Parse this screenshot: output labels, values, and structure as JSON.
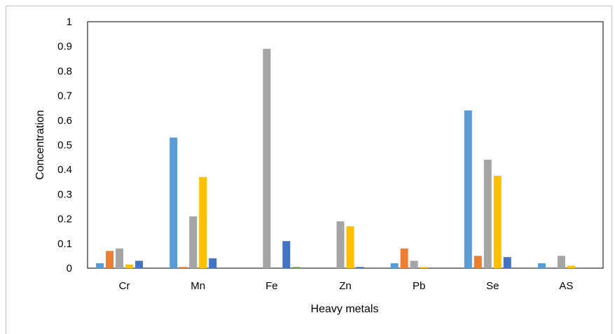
{
  "chart_data": {
    "type": "bar",
    "title": "",
    "xlabel": "Heavy metals",
    "ylabel": "Concentration",
    "categories": [
      "Cr",
      "Mn",
      "Fe",
      "Zn",
      "Pb",
      "Se",
      "AS"
    ],
    "ylim": [
      0,
      1
    ],
    "yticks": [
      "0",
      "0.1",
      "0.2",
      "0.3",
      "0.4",
      "0.5",
      "0.6",
      "0.7",
      "0.8",
      "0.9",
      "1"
    ],
    "grid": false,
    "legend": "none",
    "series": [
      {
        "color": "#5b9bd5",
        "values": [
          0.02,
          0.53,
          0,
          0,
          0.02,
          0.64,
          0.02
        ]
      },
      {
        "color": "#ed7d31",
        "values": [
          0.07,
          0.005,
          0,
          0,
          0.08,
          0.05,
          0
        ]
      },
      {
        "color": "#a5a5a5",
        "values": [
          0.08,
          0.21,
          0.89,
          0.19,
          0.03,
          0.44,
          0.05
        ]
      },
      {
        "color": "#ffc000",
        "values": [
          0.015,
          0.37,
          0,
          0.17,
          0.005,
          0.375,
          0.01
        ]
      },
      {
        "color": "#4472c4",
        "values": [
          0.03,
          0.04,
          0.11,
          0.005,
          0,
          0.045,
          0
        ]
      },
      {
        "color": "#70ad47",
        "values": [
          0,
          0,
          0.005,
          0,
          0,
          0,
          0
        ]
      }
    ]
  }
}
